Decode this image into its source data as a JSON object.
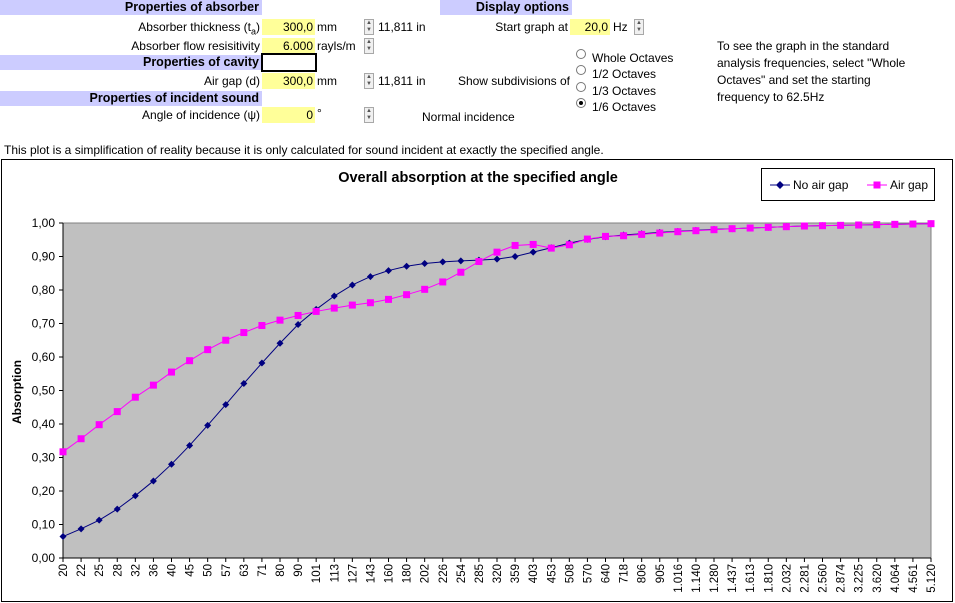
{
  "absorber": {
    "header": "Properties of absorber",
    "thickness_label": "Absorber thickness (t",
    "thickness_sub": "a",
    "thickness_close": ")",
    "thickness_value": "300,0",
    "thickness_unit": "mm",
    "thickness_inches": "11,811",
    "thickness_inches_unit": "in",
    "flow_label": "Absorber flow resisitivity",
    "flow_value": "6.000",
    "flow_unit": "rayls/m"
  },
  "cavity": {
    "header": "Properties of cavity",
    "air_gap_label": "Air gap (d)",
    "air_gap_value": "300,0",
    "air_gap_unit": "mm",
    "air_gap_inches": "11,811",
    "air_gap_inches_unit": "in"
  },
  "incident": {
    "header": "Properties of incident sound",
    "angle_label": "Angle of incidence (ψ)",
    "angle_value": "0",
    "angle_unit": "°",
    "incidence_text": "Normal incidence"
  },
  "display": {
    "header": "Display options",
    "start_label": "Start graph at",
    "start_value": "20,0",
    "start_unit": "Hz",
    "subdiv_label": "Show subdivisions of",
    "options": [
      "Whole Octaves",
      "1/2 Octaves",
      "1/3 Octaves",
      "1/6 Octaves"
    ],
    "selected_index": 3,
    "hint": "To see the graph in the standard analysis frequencies, select \"Whole Octaves\" and set the starting frequency to 62.5Hz"
  },
  "disclaimer": "This plot is a simplification of reality because it is only calculated for sound incident at exactly the specified angle.",
  "colors": {
    "header_bg": "#ccccff",
    "input_bg": "#ffff99",
    "plot_bg": "#c0c0c0",
    "no_air_gap": "#000080",
    "air_gap": "#ff00ff"
  },
  "chart_data": {
    "type": "line",
    "title": "Overall absorption at the specified angle",
    "ylabel": "Absorption",
    "xlabel": "",
    "ylim": [
      0,
      1
    ],
    "yticks": [
      "0,00",
      "0,10",
      "0,20",
      "0,30",
      "0,40",
      "0,50",
      "0,60",
      "0,70",
      "0,80",
      "0,90",
      "1,00"
    ],
    "legend_position": "top-right",
    "categories": [
      "20",
      "22",
      "25",
      "28",
      "32",
      "36",
      "40",
      "45",
      "50",
      "57",
      "63",
      "71",
      "80",
      "90",
      "101",
      "113",
      "127",
      "143",
      "160",
      "180",
      "202",
      "226",
      "254",
      "285",
      "320",
      "359",
      "403",
      "453",
      "508",
      "570",
      "640",
      "718",
      "806",
      "905",
      "1.016",
      "1.140",
      "1.280",
      "1.437",
      "1.613",
      "1.810",
      "2.032",
      "2.281",
      "2.560",
      "2.874",
      "3.225",
      "3.620",
      "4.064",
      "4.561",
      "5.120"
    ],
    "series": [
      {
        "name": "No air gap",
        "marker": "diamond",
        "color": "#000080",
        "values": [
          0.064,
          0.087,
          0.113,
          0.146,
          0.186,
          0.23,
          0.28,
          0.336,
          0.396,
          0.458,
          0.521,
          0.582,
          0.641,
          0.697,
          0.742,
          0.782,
          0.815,
          0.84,
          0.858,
          0.871,
          0.879,
          0.884,
          0.887,
          0.889,
          0.892,
          0.9,
          0.913,
          0.926,
          0.94,
          0.951,
          0.959,
          0.964,
          0.968,
          0.972,
          0.975,
          0.978,
          0.981,
          0.983,
          0.985,
          0.987,
          0.989,
          0.991,
          0.992,
          0.993,
          0.994,
          0.995,
          0.996,
          0.997,
          0.998
        ]
      },
      {
        "name": "Air gap",
        "marker": "square",
        "color": "#ff00ff",
        "values": [
          0.317,
          0.356,
          0.398,
          0.437,
          0.48,
          0.516,
          0.555,
          0.589,
          0.622,
          0.65,
          0.673,
          0.694,
          0.71,
          0.724,
          0.736,
          0.746,
          0.755,
          0.762,
          0.772,
          0.786,
          0.802,
          0.824,
          0.853,
          0.885,
          0.913,
          0.933,
          0.936,
          0.925,
          0.935,
          0.952,
          0.96,
          0.962,
          0.966,
          0.97,
          0.974,
          0.977,
          0.98,
          0.983,
          0.985,
          0.987,
          0.989,
          0.991,
          0.992,
          0.993,
          0.994,
          0.995,
          0.996,
          0.997,
          0.998
        ]
      }
    ]
  }
}
